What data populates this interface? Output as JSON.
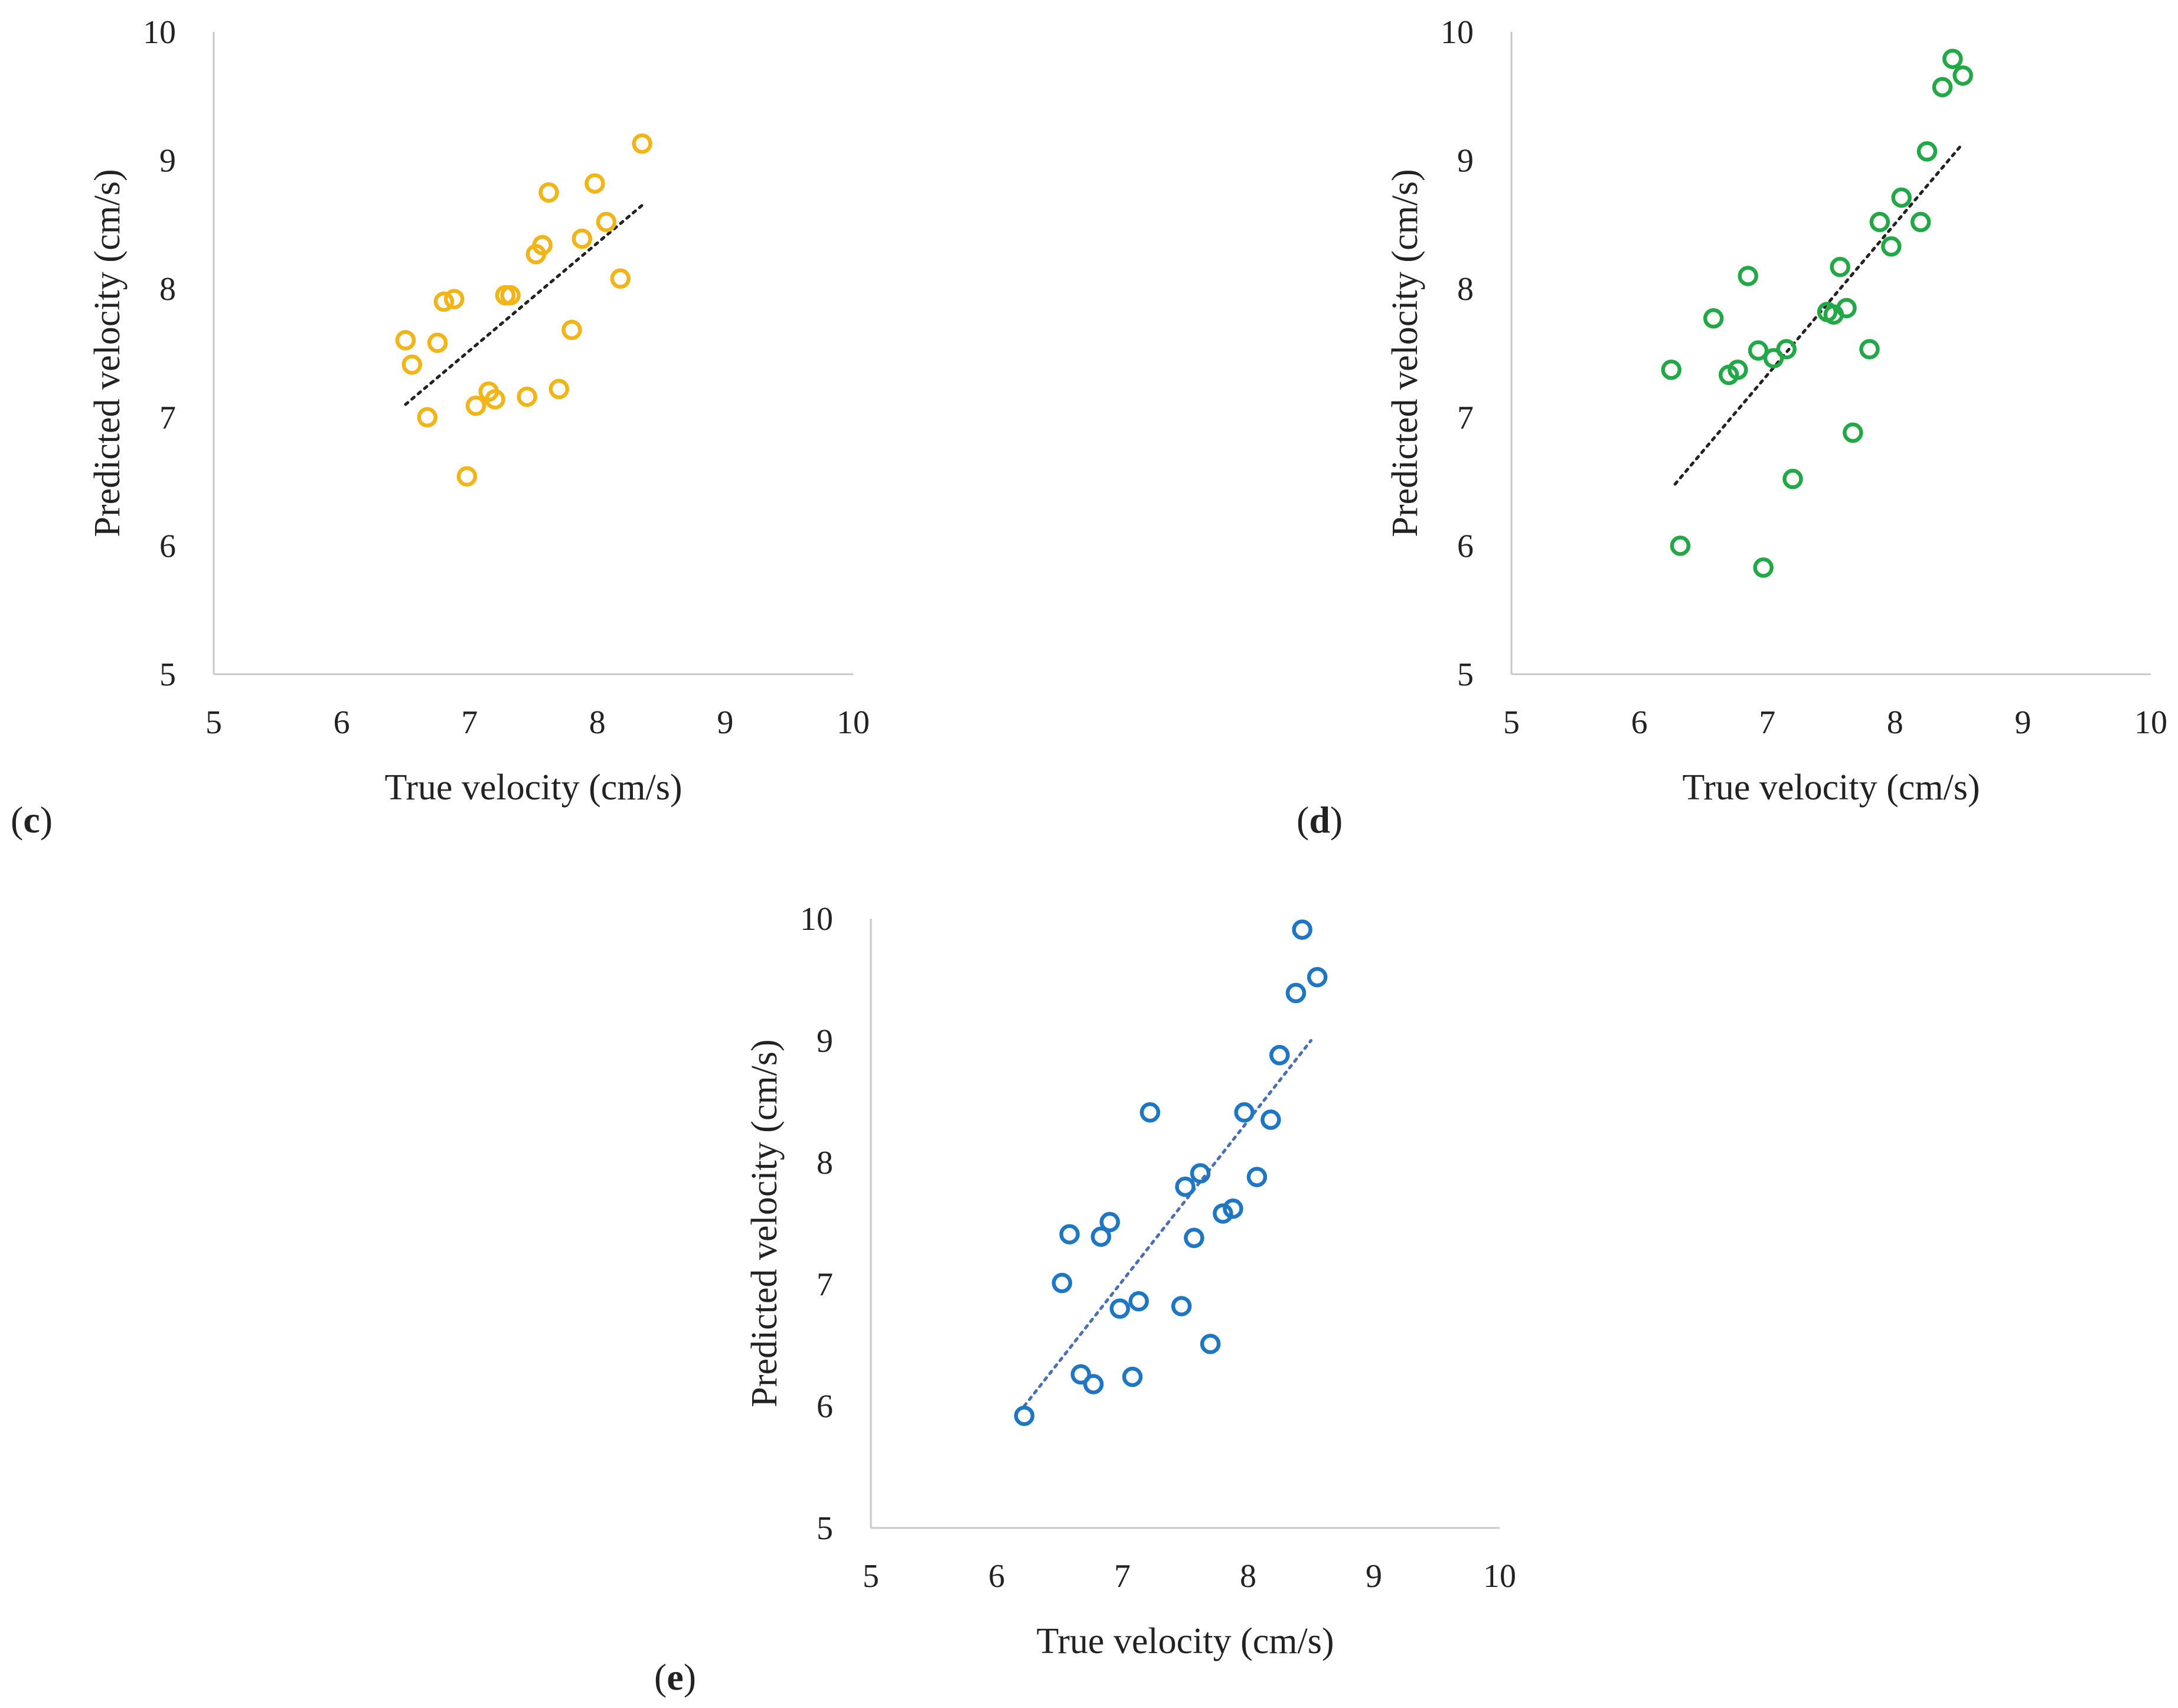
{
  "chart_data": [
    {
      "type": "scatter",
      "panel_label": "c",
      "xlabel": "True velocity  (cm/s)",
      "ylabel": "Predicted velocity  (cm/s)",
      "xlim": [
        5,
        10
      ],
      "ylim": [
        5,
        10
      ],
      "xticks": [
        5,
        6,
        7,
        8,
        9,
        10
      ],
      "yticks": [
        5,
        6,
        7,
        8,
        9,
        10
      ],
      "grid": false,
      "marker_color": "#F2B417",
      "trendline_color": "#222222",
      "trendline": [
        [
          6.5,
          7.1
        ],
        [
          8.35,
          8.65
        ]
      ],
      "series": [
        {
          "name": "c",
          "x": [
            6.5,
            6.55,
            6.67,
            6.75,
            6.8,
            6.88,
            6.98,
            7.05,
            7.15,
            7.2,
            7.28,
            7.32,
            7.45,
            7.52,
            7.57,
            7.62,
            7.7,
            7.8,
            7.88,
            7.98,
            8.07,
            8.18,
            8.35
          ],
          "y": [
            7.6,
            7.41,
            7.0,
            7.58,
            7.9,
            7.92,
            6.54,
            7.09,
            7.2,
            7.14,
            7.95,
            7.95,
            7.16,
            8.27,
            8.34,
            8.75,
            7.22,
            7.68,
            8.39,
            8.82,
            8.52,
            8.08,
            9.13
          ]
        }
      ]
    },
    {
      "type": "scatter",
      "panel_label": "d",
      "xlabel": "True velocity  (cm/s)",
      "ylabel": "Predicted velocity  (cm/s)",
      "xlim": [
        5,
        10
      ],
      "ylim": [
        5,
        10
      ],
      "xticks": [
        5,
        6,
        7,
        8,
        9,
        10
      ],
      "yticks": [
        5,
        6,
        7,
        8,
        9,
        10
      ],
      "grid": false,
      "marker_color": "#22A846",
      "trendline_color": "#222222",
      "trendline": [
        [
          6.28,
          6.48
        ],
        [
          8.52,
          9.12
        ]
      ],
      "series": [
        {
          "name": "d",
          "x": [
            6.25,
            6.32,
            6.58,
            6.7,
            6.77,
            6.85,
            6.93,
            6.97,
            7.05,
            7.15,
            7.2,
            7.47,
            7.52,
            7.57,
            7.62,
            7.67,
            7.8,
            7.88,
            7.97,
            8.05,
            8.2,
            8.25,
            8.37,
            8.45,
            8.53
          ],
          "y": [
            7.37,
            6.0,
            7.77,
            7.33,
            7.37,
            8.1,
            7.52,
            5.83,
            7.46,
            7.53,
            6.52,
            7.82,
            7.8,
            8.17,
            7.85,
            6.88,
            7.53,
            8.52,
            8.33,
            8.71,
            8.52,
            9.07,
            9.57,
            9.79,
            9.66
          ]
        }
      ]
    },
    {
      "type": "scatter",
      "panel_label": "e",
      "xlabel": "True velocity  (cm/s)",
      "ylabel": "Predicted velocity  (cm/s)",
      "xlim": [
        5,
        10
      ],
      "ylim": [
        5,
        10
      ],
      "xticks": [
        5,
        6,
        7,
        8,
        9,
        10
      ],
      "yticks": [
        5,
        6,
        7,
        8,
        9,
        10
      ],
      "grid": false,
      "marker_color": "#1F77C4",
      "trendline_color": "#4A6FB5",
      "trendline": [
        [
          6.22,
          6.0
        ],
        [
          8.5,
          9.0
        ]
      ],
      "series": [
        {
          "name": "e",
          "x": [
            6.22,
            6.52,
            6.58,
            6.67,
            6.77,
            6.83,
            6.9,
            6.98,
            7.08,
            7.13,
            7.22,
            7.47,
            7.5,
            7.57,
            7.62,
            7.7,
            7.8,
            7.88,
            7.97,
            8.07,
            8.18,
            8.25,
            8.38,
            8.43,
            8.55
          ],
          "y": [
            5.92,
            7.01,
            7.41,
            6.26,
            6.18,
            7.39,
            7.51,
            6.8,
            6.24,
            6.86,
            8.41,
            6.82,
            7.8,
            7.38,
            7.91,
            6.51,
            7.58,
            7.62,
            8.41,
            7.88,
            8.35,
            8.88,
            9.39,
            9.91,
            9.52
          ]
        }
      ]
    }
  ]
}
